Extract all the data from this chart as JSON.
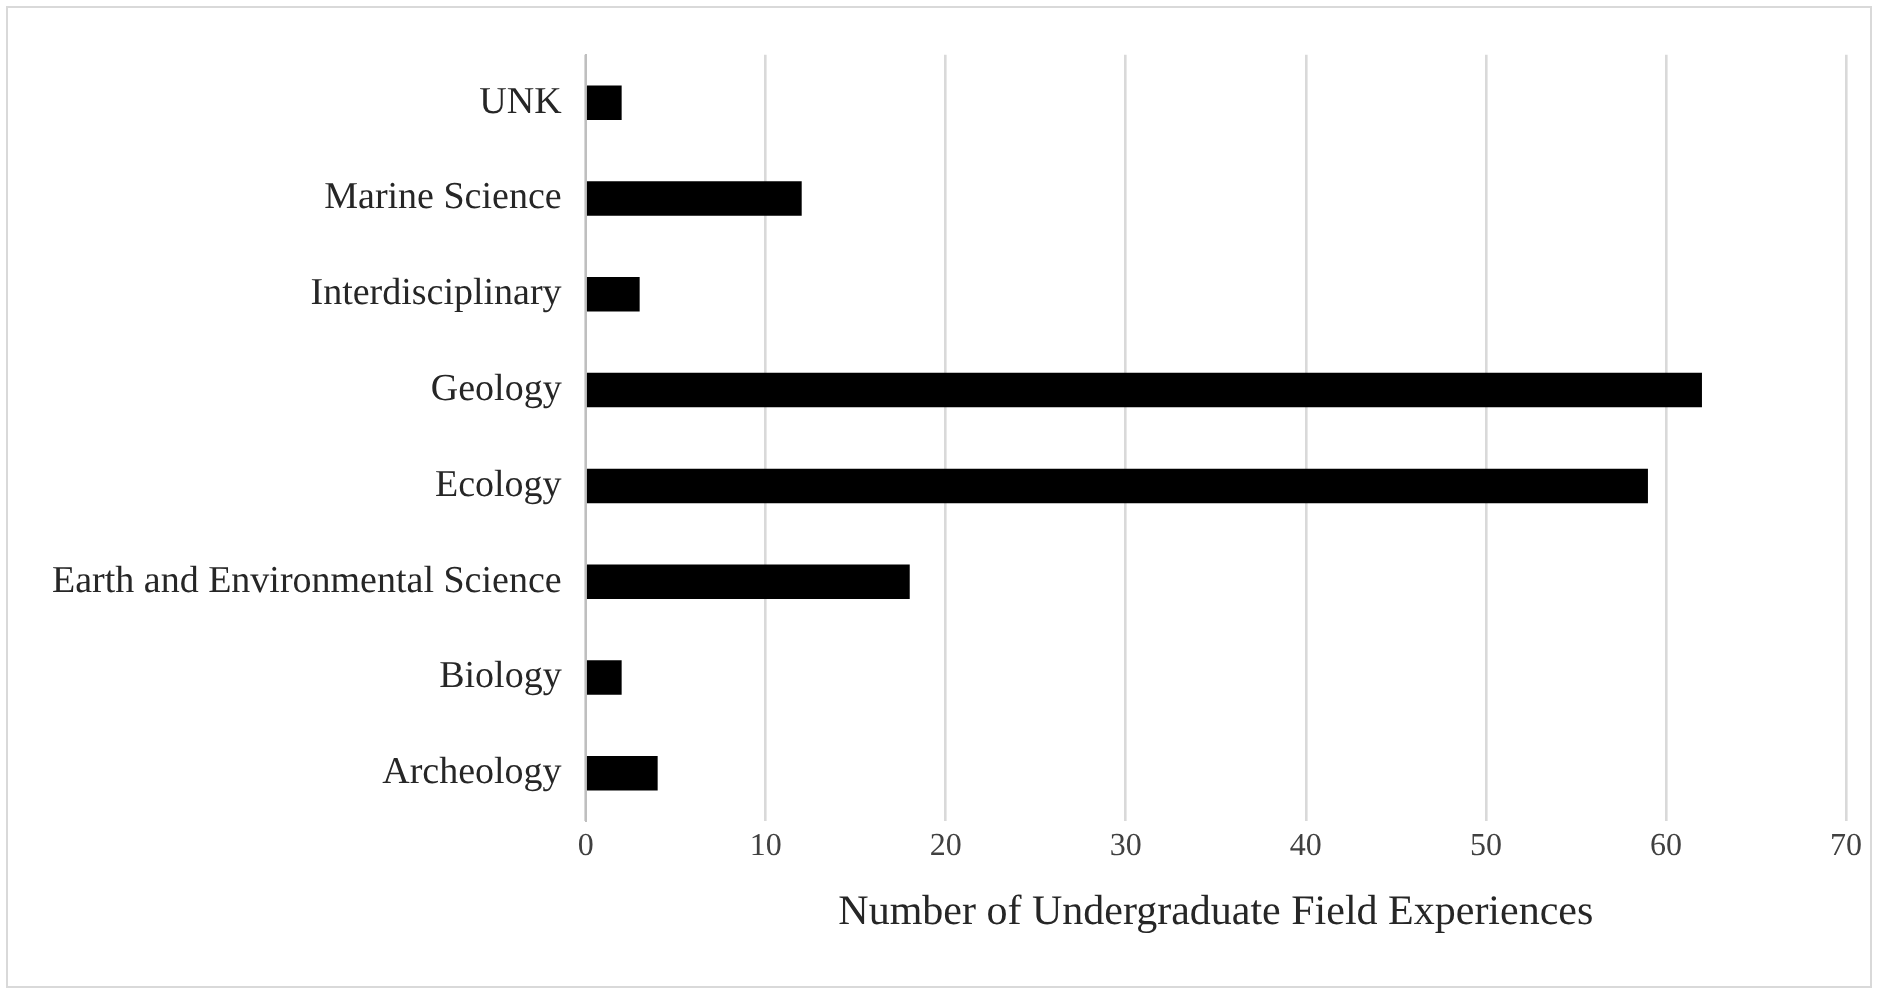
{
  "chart_data": {
    "type": "bar",
    "orientation": "horizontal",
    "xlabel": "Number of Undergraduate Field Experiences",
    "categories": [
      "UNK",
      "Marine Science",
      "Interdisciplinary",
      "Geology",
      "Ecology",
      "Earth and Environmental Science",
      "Biology",
      "Archeology"
    ],
    "values": [
      2,
      12,
      3,
      62,
      59,
      18,
      2,
      4
    ],
    "color": "#000000",
    "xlim": [
      0,
      70
    ],
    "xticks": [
      0,
      10,
      20,
      30,
      40,
      50,
      60,
      70
    ],
    "grid": "x"
  }
}
